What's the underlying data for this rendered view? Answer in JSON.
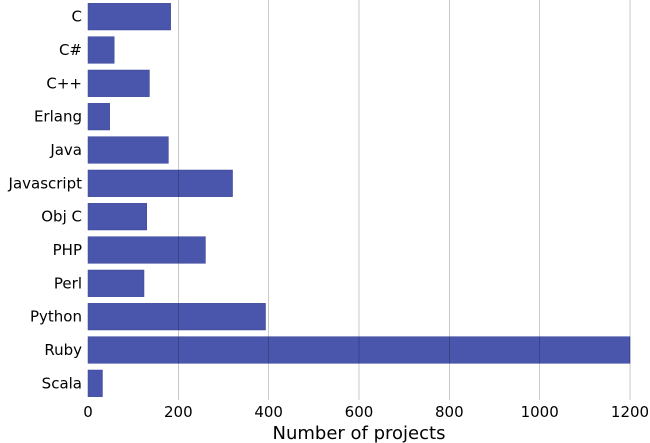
{
  "chart_data": {
    "type": "bar",
    "orientation": "horizontal",
    "categories": [
      "C",
      "C#",
      "C++",
      "Erlang",
      "Java",
      "Javascript",
      "Obj C",
      "PHP",
      "Perl",
      "Python",
      "Ruby",
      "Scala"
    ],
    "values": [
      183,
      58,
      136,
      48,
      178,
      320,
      130,
      260,
      124,
      393,
      1200,
      32
    ],
    "xlabel": "Number of projects",
    "ylabel": "",
    "xlim": [
      0,
      1200
    ],
    "xticks": [
      0,
      200,
      400,
      600,
      800,
      1000,
      1200
    ],
    "grid": "vertical",
    "bar_color": "#4652aa"
  }
}
